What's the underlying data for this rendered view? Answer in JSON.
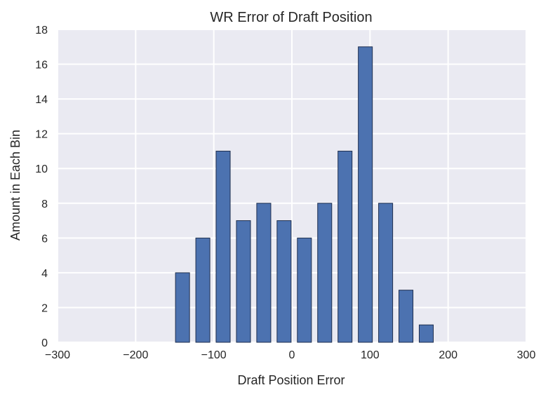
{
  "chart_data": {
    "type": "bar",
    "title": "WR Error of Draft Position",
    "xlabel": "Draft Position Error",
    "ylabel": "Amount in Each Bin",
    "xlim": [
      -300,
      300
    ],
    "ylim": [
      0,
      18
    ],
    "xticks": [
      -300,
      -200,
      -100,
      0,
      100,
      200,
      300
    ],
    "xtick_labels": [
      "−300",
      "−200",
      "−100",
      "0",
      "100",
      "200",
      "300"
    ],
    "yticks": [
      0,
      2,
      4,
      6,
      8,
      10,
      12,
      14,
      16,
      18
    ],
    "ytick_labels": [
      "0",
      "2",
      "4",
      "6",
      "8",
      "10",
      "12",
      "14",
      "16",
      "18"
    ],
    "bar_width": 18,
    "x": [
      -140,
      -114,
      -88,
      -62,
      -36,
      -10,
      16,
      42,
      68,
      94,
      120,
      146,
      172
    ],
    "values": [
      4,
      6,
      11,
      7,
      8,
      7,
      6,
      8,
      11,
      17,
      8,
      3,
      1
    ],
    "grid": true,
    "colors": {
      "bar_fill": "#4c72b0",
      "bar_edge": "#1f2f4f",
      "plot_bg": "#eaeaf2",
      "grid": "#ffffff"
    }
  }
}
